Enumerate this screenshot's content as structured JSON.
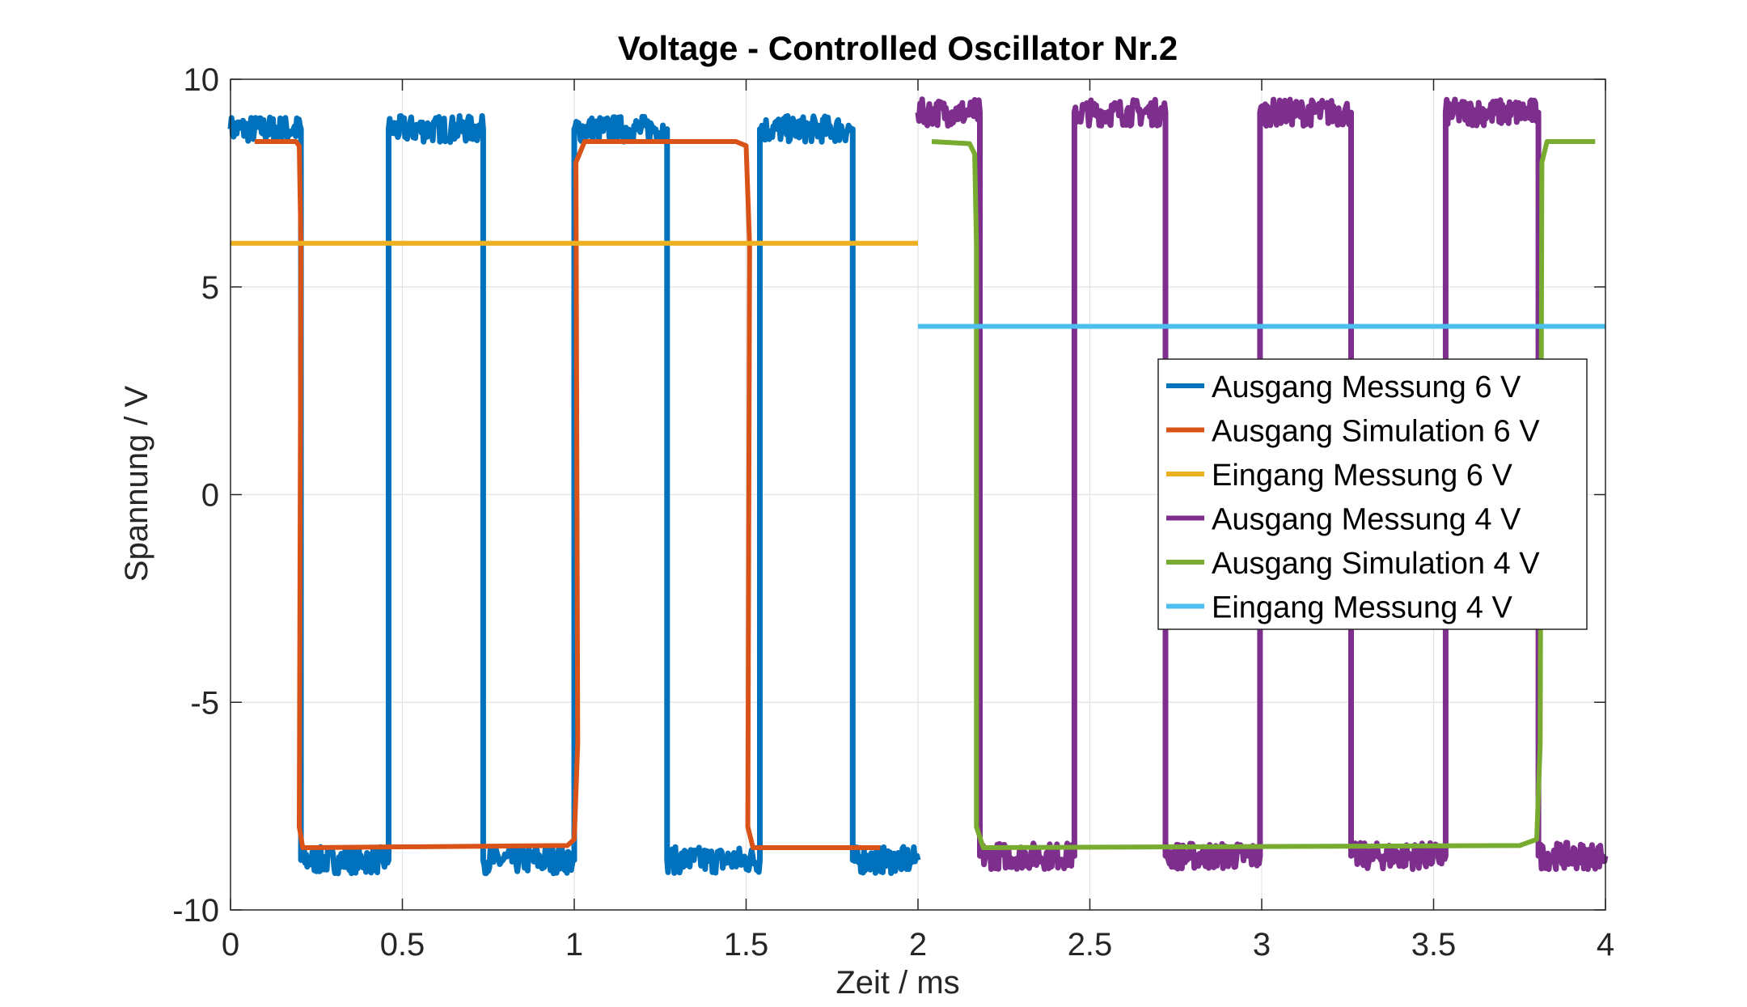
{
  "chart_data": {
    "type": "line",
    "title": "Voltage - Controlled Oscillator Nr.2",
    "xlabel": "Zeit / ms",
    "ylabel": "Spannung / V",
    "xlim": [
      0,
      4
    ],
    "ylim": [
      -10,
      10
    ],
    "xticks": [
      0,
      0.5,
      1,
      1.5,
      2,
      2.5,
      3,
      3.5,
      4
    ],
    "xtick_labels": [
      "0",
      "0.5",
      "1",
      "1.5",
      "2",
      "2.5",
      "3",
      "3.5",
      "4"
    ],
    "yticks": [
      -10,
      -5,
      0,
      5,
      10
    ],
    "ytick_labels": [
      "-10",
      "-5",
      "0",
      "5",
      "10"
    ],
    "grid": true,
    "legend_position": "right, center",
    "series": [
      {
        "name": "Ausgang Messung 6 V",
        "color": "#0072BD",
        "noisy": true,
        "x": [
          0,
          0.205,
          0.205,
          0.46,
          0.46,
          0.735,
          0.735,
          1.0,
          1.0,
          1.27,
          1.27,
          1.54,
          1.54,
          1.81,
          1.81,
          2.0
        ],
        "y": [
          8.8,
          8.8,
          -8.8,
          -8.8,
          8.8,
          8.8,
          -8.8,
          -8.8,
          8.8,
          8.8,
          -8.8,
          -8.8,
          8.8,
          8.8,
          -8.8,
          -8.8
        ]
      },
      {
        "name": "Ausgang Simulation 6 V",
        "color": "#D95319",
        "noisy": false,
        "x": [
          0.07,
          0.19,
          0.2,
          0.205,
          0.2,
          0.21,
          0.98,
          1.0,
          1.01,
          1.005,
          1.03,
          1.47,
          1.5,
          1.51,
          1.505,
          1.52,
          1.89
        ],
        "y": [
          8.5,
          8.5,
          8.4,
          6.0,
          -8.0,
          -8.5,
          -8.45,
          -8.3,
          -6.0,
          8.0,
          8.5,
          8.5,
          8.4,
          6.0,
          -8.0,
          -8.5,
          -8.5
        ]
      },
      {
        "name": "Eingang Messung 6 V",
        "color": "#EDB120",
        "noisy": false,
        "x": [
          0,
          2.0
        ],
        "y": [
          6.05,
          6.05
        ]
      },
      {
        "name": "Ausgang Messung 4 V",
        "color": "#7E2F8E",
        "noisy": true,
        "x": [
          2.0,
          2.18,
          2.18,
          2.455,
          2.455,
          2.72,
          2.72,
          2.995,
          2.995,
          3.26,
          3.26,
          3.535,
          3.535,
          3.805,
          3.805,
          4.0
        ],
        "y": [
          9.2,
          9.2,
          -8.7,
          -8.7,
          9.2,
          9.2,
          -8.7,
          -8.7,
          9.2,
          9.2,
          -8.7,
          -8.7,
          9.2,
          9.2,
          -8.7,
          -8.7
        ]
      },
      {
        "name": "Ausgang Simulation 4 V",
        "color": "#77AC30",
        "noisy": false,
        "x": [
          2.04,
          2.15,
          2.165,
          2.17,
          2.17,
          2.19,
          3.75,
          3.8,
          3.81,
          3.815,
          3.83,
          3.97
        ],
        "y": [
          8.5,
          8.45,
          8.2,
          6.0,
          -8.0,
          -8.5,
          -8.45,
          -8.3,
          -6.0,
          8.0,
          8.5,
          8.5
        ]
      },
      {
        "name": "Eingang Messung 4 V",
        "color": "#4DBEEE",
        "noisy": false,
        "x": [
          2.0,
          4.0
        ],
        "y": [
          4.05,
          4.05
        ]
      }
    ]
  }
}
